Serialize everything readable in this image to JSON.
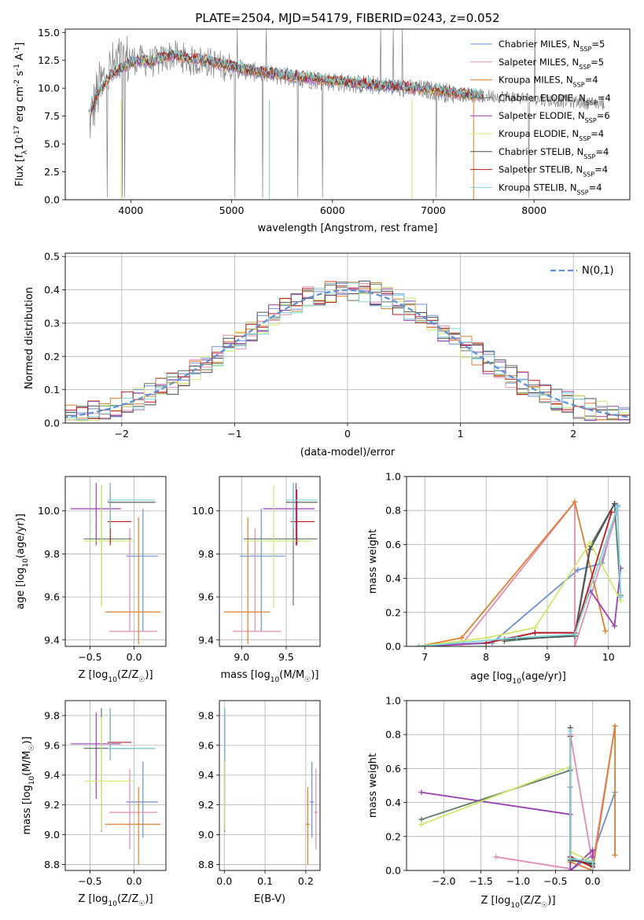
{
  "chart_data": [
    {
      "type": "line",
      "id": "spectrum",
      "title": "PLATE=2504, MJD=54179, FIBERID=0243, z=0.052",
      "xlabel": "wavelength [Angstrom, rest frame]",
      "ylabel": "Flux [f$_\\lambda$10$^{-17}$ erg cm$^{-2}$ s$^{-1}$ A$^{-1}$]",
      "xlim": [
        3350,
        8950
      ],
      "ylim": [
        0,
        15.3
      ],
      "xticks": [
        4000,
        5000,
        6000,
        7000,
        8000
      ],
      "xtick_labels": [
        "4000",
        "5000",
        "6000",
        "7000",
        "8000"
      ],
      "yticks": [
        0,
        2.5,
        5,
        7.5,
        10,
        12.5,
        15
      ],
      "ytick_labels": [
        "0.0",
        "2.5",
        "5.0",
        "7.5",
        "10.0",
        "12.5",
        "15.0"
      ],
      "grid": false,
      "legend_position": "top-right",
      "data_color": "#808080",
      "data_wavelength": [
        3600,
        3650,
        3700,
        3750,
        3800,
        3900,
        4000,
        4100,
        4200,
        4300,
        4400,
        4500,
        4600,
        4700,
        4800,
        4900,
        5000,
        5200,
        5400,
        5600,
        5800,
        6000,
        6200,
        6400,
        6600,
        6800,
        7000,
        7200,
        7400,
        7600,
        7800,
        8000,
        8200,
        8400,
        8700
      ],
      "data_flux": [
        7.2,
        9.0,
        10.2,
        11.0,
        11.6,
        12.3,
        12.6,
        12.5,
        12.3,
        12.5,
        13.0,
        12.8,
        12.4,
        12.5,
        12.3,
        12.0,
        11.9,
        11.5,
        11.2,
        11.0,
        10.8,
        10.6,
        10.4,
        10.3,
        10.1,
        9.9,
        9.8,
        9.5,
        9.3,
        9.3,
        9.2,
        9.0,
        8.9,
        8.8,
        8.6
      ],
      "models": [
        {
          "name": "Chabrier MILES, N$_{SSP}$=5",
          "color": "#6b8fd8"
        },
        {
          "name": "Salpeter MILES, N$_{SSP}$=5",
          "color": "#e58bb3"
        },
        {
          "name": "Kroupa MILES, N$_{SSP}$=4",
          "color": "#e07f2c"
        },
        {
          "name": "Chabrier ELODIE, N$_{SSP}$=4",
          "color": "#5e7a66"
        },
        {
          "name": "Salpeter ELODIE, N$_{SSP}$=6",
          "color": "#9a3fb2"
        },
        {
          "name": "Kroupa ELODIE, N$_{SSP}$=4",
          "color": "#cfe86a"
        },
        {
          "name": "Chabrier STELIB, N$_{SSP}$=4",
          "color": "#4f4f4f"
        },
        {
          "name": "Salpeter STELIB, N$_{SSP}$=4",
          "color": "#b81c1c"
        },
        {
          "name": "Kroupa STELIB, N$_{SSP}$=4",
          "color": "#7dd3dc"
        }
      ],
      "model_wavelength": [
        3600,
        3650,
        3700,
        3750,
        3800,
        3900,
        4000,
        4100,
        4200,
        4300,
        4400,
        4500,
        4600,
        4700,
        4800,
        4900,
        5000,
        5200,
        5400,
        5600,
        5800,
        6000,
        6200,
        6400,
        6600,
        6800,
        7000,
        7200,
        7400,
        7500
      ],
      "model_flux": [
        7.8,
        9.0,
        9.8,
        10.5,
        11.2,
        11.8,
        12.3,
        12.5,
        12.4,
        12.7,
        13.0,
        12.8,
        12.6,
        12.5,
        12.4,
        12.1,
        12.0,
        11.6,
        11.3,
        11.1,
        10.9,
        10.7,
        10.5,
        10.3,
        10.2,
        10.0,
        9.9,
        9.6,
        9.4,
        9.3
      ]
    },
    {
      "type": "histogram",
      "id": "residuals",
      "xlabel": "(data-model)/error",
      "ylabel": "Normed distribution",
      "xlim": [
        -2.5,
        2.5
      ],
      "ylim": [
        0,
        0.51
      ],
      "xticks": [
        -2,
        -1,
        0,
        1,
        2
      ],
      "xtick_labels": [
        "−2",
        "−1",
        "0",
        "1",
        "2"
      ],
      "yticks": [
        0,
        0.1,
        0.2,
        0.3,
        0.4,
        0.5
      ],
      "ytick_labels": [
        "0.0",
        "0.1",
        "0.2",
        "0.3",
        "0.4",
        "0.5"
      ],
      "grid": true,
      "legend_position": "top-right",
      "gaussian_label": "$\\mathcal{N}(0,1)$",
      "gaussian_color": "#5b8fd6",
      "bin_width": 0.1
    },
    {
      "type": "errorbar",
      "id": "age-vs-Z",
      "xlabel": "Z [log$_{10}$(Z/Z$_\\odot$)]",
      "ylabel": "age  [log$_{10}$(age/yr)]",
      "xlim": [
        -0.78,
        0.36
      ],
      "ylim": [
        9.37,
        10.16
      ],
      "xticks": [
        -0.5,
        0.0
      ],
      "xtick_labels": [
        "−0.5",
        "0.0"
      ],
      "yticks": [
        9.4,
        9.6,
        9.8,
        10.0
      ],
      "ytick_labels": [
        "9.4",
        "9.6",
        "9.8",
        "10.0"
      ],
      "grid": true
    },
    {
      "type": "errorbar",
      "id": "age-vs-mass",
      "xlabel": "mass [log$_{10}$(M/M$_\\odot$)]",
      "ylabel": "",
      "xlim": [
        8.75,
        9.88
      ],
      "ylim": [
        9.37,
        10.16
      ],
      "xticks": [
        9.0,
        9.5
      ],
      "xtick_labels": [
        "9.0",
        "9.5"
      ],
      "yticks": [
        9.4,
        9.6,
        9.8,
        10.0
      ],
      "ytick_labels": [
        "9.4",
        "9.6",
        "9.8",
        "10.0"
      ],
      "grid": true
    },
    {
      "type": "line",
      "id": "weight-vs-age",
      "xlabel": "age  [log$_{10}$(age/yr)]",
      "ylabel": "mass weight",
      "xlim": [
        6.7,
        10.35
      ],
      "ylim": [
        0,
        1.0
      ],
      "xticks": [
        7,
        8,
        9,
        10
      ],
      "xtick_labels": [
        "7",
        "8",
        "9",
        "10"
      ],
      "yticks": [
        0,
        0.2,
        0.4,
        0.6,
        0.8,
        1.0
      ],
      "ytick_labels": [
        "0.0",
        "0.2",
        "0.4",
        "0.6",
        "0.8",
        "1.0"
      ],
      "grid": true,
      "series": [
        {
          "color": "#6b8fd8",
          "x": [
            6.9,
            8.1,
            9.5,
            9.9,
            10.15
          ],
          "y": [
            0.0,
            0.02,
            0.45,
            0.49,
            0.83
          ]
        },
        {
          "color": "#e58bb3",
          "x": [
            6.9,
            7.6,
            9.45,
            9.45,
            10.15
          ],
          "y": [
            0.0,
            0.01,
            0.85,
            0.0,
            0.8
          ]
        },
        {
          "color": "#e07f2c",
          "x": [
            6.9,
            7.6,
            9.45,
            9.95
          ],
          "y": [
            0.0,
            0.05,
            0.85,
            0.09
          ]
        },
        {
          "color": "#5e7a66",
          "x": [
            8.3,
            9.45,
            9.7,
            10.1,
            10.2
          ],
          "y": [
            0.03,
            0.07,
            0.59,
            0.84,
            0.3
          ]
        },
        {
          "color": "#9a3fb2",
          "x": [
            6.9,
            8.0,
            8.8,
            9.45,
            9.7,
            10.1,
            10.2
          ],
          "y": [
            0.0,
            0.02,
            0.08,
            0.08,
            0.33,
            0.12,
            0.46
          ]
        },
        {
          "color": "#cfe86a",
          "x": [
            6.9,
            8.0,
            8.8,
            9.7,
            10.2
          ],
          "y": [
            0.0,
            0.05,
            0.11,
            0.61,
            0.27
          ]
        },
        {
          "color": "#4f4f4f",
          "x": [
            8.3,
            9.45,
            9.7,
            10.1
          ],
          "y": [
            0.04,
            0.06,
            0.57,
            0.84
          ]
        },
        {
          "color": "#b81c1c",
          "x": [
            8.0,
            8.8,
            9.45,
            10.05
          ],
          "y": [
            0.02,
            0.08,
            0.08,
            0.79
          ]
        },
        {
          "color": "#7dd3dc",
          "x": [
            6.9,
            8.5,
            9.45,
            10.15,
            10.2
          ],
          "y": [
            0.0,
            0.05,
            0.07,
            0.82,
            0.29
          ]
        }
      ]
    },
    {
      "type": "errorbar",
      "id": "mass-vs-Z",
      "xlabel": "Z [log$_{10}$(Z/Z$_\\odot$)]",
      "ylabel": "mass [log$_{10}$(M/M$_\\odot$)]",
      "xlim": [
        -0.78,
        0.36
      ],
      "ylim": [
        8.76,
        9.9
      ],
      "xticks": [
        -0.5,
        0.0
      ],
      "xtick_labels": [
        "−0.5",
        "0.0"
      ],
      "yticks": [
        8.8,
        9.0,
        9.2,
        9.4,
        9.6,
        9.8
      ],
      "ytick_labels": [
        "8.8",
        "9.0",
        "9.2",
        "9.4",
        "9.6",
        "9.8"
      ],
      "grid": true
    },
    {
      "type": "errorbar",
      "id": "mass-vs-ebv",
      "xlabel": "E(B-V)",
      "ylabel": "",
      "xlim": [
        -0.012,
        0.235
      ],
      "ylim": [
        8.76,
        9.9
      ],
      "xticks": [
        0.0,
        0.1,
        0.2
      ],
      "xtick_labels": [
        "0.0",
        "0.1",
        "0.2"
      ],
      "yticks": [
        8.8,
        9.0,
        9.2,
        9.4,
        9.6,
        9.8
      ],
      "ytick_labels": [
        "8.8",
        "9.0",
        "9.2",
        "9.4",
        "9.6",
        "9.8"
      ],
      "grid": true
    },
    {
      "type": "line",
      "id": "weight-vs-Z",
      "xlabel": "Z [log$_{10}$(Z/Z$_\\odot$)]",
      "ylabel": "mass weight",
      "xlim": [
        -2.5,
        0.5
      ],
      "ylim": [
        0,
        1.0
      ],
      "xticks": [
        -2.0,
        -1.5,
        -1.0,
        -0.5,
        0.0
      ],
      "xtick_labels": [
        "−2.0",
        "−1.5",
        "−1.0",
        "−0.5",
        "0.0"
      ],
      "yticks": [
        0,
        0.2,
        0.4,
        0.6,
        0.8,
        1.0
      ],
      "ytick_labels": [
        "0.0",
        "0.2",
        "0.4",
        "0.6",
        "0.8",
        "1.0"
      ],
      "grid": true,
      "series": [
        {
          "color": "#6b8fd8",
          "x": [
            -0.3,
            -0.3,
            0.0,
            0.3
          ],
          "y": [
            0.49,
            0.0,
            0.09,
            0.46
          ]
        },
        {
          "color": "#e58bb3",
          "x": [
            -1.3,
            -0.3,
            -0.3,
            0.0,
            0.3
          ],
          "y": [
            0.08,
            0.01,
            0.8,
            0.04,
            0.85
          ]
        },
        {
          "color": "#e07f2c",
          "x": [
            -0.3,
            0.0,
            0.3,
            0.3
          ],
          "y": [
            0.05,
            0.0,
            0.85,
            0.09
          ]
        },
        {
          "color": "#5e7a66",
          "x": [
            -2.3,
            -0.3,
            -0.3,
            0.0
          ],
          "y": [
            0.3,
            0.59,
            0.07,
            0.03
          ]
        },
        {
          "color": "#9a3fb2",
          "x": [
            -2.3,
            -0.3,
            -0.3,
            0.0,
            0.0
          ],
          "y": [
            0.46,
            0.33,
            0.0,
            0.12,
            0.08
          ]
        },
        {
          "color": "#cfe86a",
          "x": [
            -2.3,
            -0.3,
            -0.3,
            0.0,
            0.0
          ],
          "y": [
            0.27,
            0.61,
            0.11,
            0.05,
            0.0
          ]
        },
        {
          "color": "#4f4f4f",
          "x": [
            -0.3,
            -0.3,
            0.0
          ],
          "y": [
            0.84,
            0.06,
            0.04
          ]
        },
        {
          "color": "#b81c1c",
          "x": [
            -0.3,
            -0.3,
            0.0
          ],
          "y": [
            0.79,
            0.08,
            0.02
          ]
        },
        {
          "color": "#7dd3dc",
          "x": [
            -0.3,
            -0.3,
            0.0,
            0.0
          ],
          "y": [
            0.82,
            0.07,
            0.05,
            0.0
          ]
        }
      ]
    }
  ],
  "ssp_fits": [
    {
      "color": "#6b8fd8",
      "Z": 0.1,
      "Z_lo": -0.09,
      "Z_hi": 0.27,
      "age": 9.79,
      "age_lo": 9.44,
      "age_hi": 10.01,
      "mass": 9.22,
      "mass_lo": 8.98,
      "mass_hi": 9.49,
      "ebv": 0.215,
      "ebv_lo": 0.21,
      "ebv_hi": 0.22
    },
    {
      "color": "#e58bb3",
      "Z": -0.05,
      "Z_lo": -0.28,
      "Z_hi": 0.26,
      "age": 9.44,
      "age_lo": 9.44,
      "age_hi": 9.92,
      "mass": 9.15,
      "mass_lo": 8.9,
      "mass_hi": 9.44,
      "ebv": 0.225,
      "ebv_lo": 0.22,
      "ebv_hi": 0.23
    },
    {
      "color": "#e07f2c",
      "Z": 0.05,
      "Z_lo": -0.33,
      "Z_hi": 0.3,
      "age": 9.53,
      "age_lo": 9.38,
      "age_hi": 9.97,
      "mass": 9.07,
      "mass_lo": 8.8,
      "mass_hi": 9.32,
      "ebv": 0.205,
      "ebv_lo": 0.2,
      "ebv_hi": 0.21
    },
    {
      "color": "#5e7a66",
      "Z": -0.37,
      "Z_lo": -0.57,
      "Z_hi": -0.03,
      "age": 9.87,
      "age_lo": 9.56,
      "age_hi": 10.12,
      "mass": 9.58,
      "mass_lo": 9.02,
      "mass_hi": 9.85,
      "ebv": 0.001,
      "ebv_lo": 0.0,
      "ebv_hi": 0.002
    },
    {
      "color": "#9a3fb2",
      "Z": -0.43,
      "Z_lo": -0.72,
      "Z_hi": -0.15,
      "age": 10.01,
      "age_lo": 9.84,
      "age_hi": 10.13,
      "mass": 9.61,
      "mass_lo": 9.24,
      "mass_hi": 9.82,
      "ebv": 0.001,
      "ebv_lo": 0.0,
      "ebv_hi": 0.002
    },
    {
      "color": "#cfe86a",
      "Z": -0.37,
      "Z_lo": -0.57,
      "Z_hi": -0.01,
      "age": 9.86,
      "age_lo": 9.55,
      "age_hi": 10.12,
      "mass": 9.36,
      "mass_lo": 9.03,
      "mass_hi": 9.79,
      "ebv": 0.001,
      "ebv_lo": 0.0,
      "ebv_hi": 0.002
    },
    {
      "color": "#4f4f4f",
      "Z": -0.27,
      "Z_lo": -0.3,
      "Z_hi": 0.24,
      "age": 10.04,
      "age_lo": 9.92,
      "age_hi": 10.13,
      "mass": 9.58,
      "mass_lo": 9.5,
      "mass_hi": 9.85,
      "ebv": 0.001,
      "ebv_lo": 0.0,
      "ebv_hi": 0.002
    },
    {
      "color": "#b81c1c",
      "Z": -0.27,
      "Z_lo": -0.3,
      "Z_hi": -0.03,
      "age": 9.95,
      "age_lo": 9.84,
      "age_hi": 10.1,
      "mass": 9.62,
      "mass_lo": 9.55,
      "mass_hi": 9.82,
      "ebv": 0.001,
      "ebv_lo": 0.0,
      "ebv_hi": 0.002
    },
    {
      "color": "#7dd3dc",
      "Z": -0.27,
      "Z_lo": -0.3,
      "Z_hi": 0.24,
      "age": 10.05,
      "age_lo": 9.92,
      "age_hi": 10.13,
      "mass": 9.58,
      "mass_lo": 9.5,
      "mass_hi": 9.85,
      "ebv": 0.001,
      "ebv_lo": 0.0,
      "ebv_hi": 0.002
    }
  ]
}
